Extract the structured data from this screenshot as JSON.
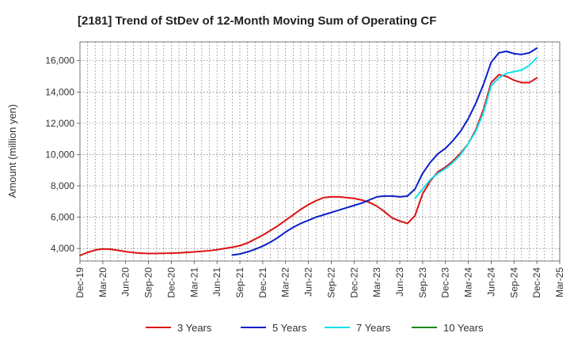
{
  "chart_data": {
    "type": "line",
    "title": "[2181]  Trend of StDev of 12-Month Moving Sum of Operating CF",
    "xlabel": "",
    "ylabel": "Amount (million yen)",
    "ylim": [
      3200,
      17200
    ],
    "yticks": [
      4000,
      6000,
      8000,
      10000,
      12000,
      14000,
      16000
    ],
    "ytick_labels": [
      "4,000",
      "6,000",
      "8,000",
      "10,000",
      "12,000",
      "14,000",
      "16,000"
    ],
    "x_start": "2019-12",
    "x_end": "2025-03",
    "xtick_labels": [
      "Dec-19",
      "Mar-20",
      "Jun-20",
      "Sep-20",
      "Dec-20",
      "Mar-21",
      "Jun-21",
      "Sep-21",
      "Dec-21",
      "Mar-22",
      "Jun-22",
      "Sep-22",
      "Dec-22",
      "Mar-23",
      "Jun-23",
      "Sep-23",
      "Dec-23",
      "Mar-24",
      "Jun-24",
      "Sep-24",
      "Dec-24",
      "Mar-25"
    ],
    "grid": true,
    "legend_position": "bottom",
    "series": [
      {
        "name": "3 Years",
        "color": "#dd1111",
        "x": [
          "2019-12",
          "2020-01",
          "2020-02",
          "2020-03",
          "2020-04",
          "2020-05",
          "2020-06",
          "2020-07",
          "2020-08",
          "2020-09",
          "2020-10",
          "2020-11",
          "2020-12",
          "2021-01",
          "2021-02",
          "2021-03",
          "2021-04",
          "2021-05",
          "2021-06",
          "2021-07",
          "2021-08",
          "2021-09",
          "2021-10",
          "2021-11",
          "2021-12",
          "2022-01",
          "2022-02",
          "2022-03",
          "2022-04",
          "2022-05",
          "2022-06",
          "2022-07",
          "2022-08",
          "2022-09",
          "2022-10",
          "2022-11",
          "2022-12",
          "2023-01",
          "2023-02",
          "2023-03",
          "2023-04",
          "2023-05",
          "2023-06",
          "2023-07",
          "2023-08",
          "2023-09",
          "2023-10",
          "2023-11",
          "2023-12",
          "2024-01",
          "2024-02",
          "2024-03",
          "2024-04",
          "2024-05",
          "2024-06",
          "2024-07",
          "2024-08",
          "2024-09",
          "2024-10",
          "2024-11",
          "2024-12"
        ],
        "values": [
          3550,
          3750,
          3900,
          3970,
          3950,
          3880,
          3800,
          3740,
          3700,
          3680,
          3680,
          3690,
          3700,
          3720,
          3750,
          3780,
          3820,
          3860,
          3920,
          4000,
          4080,
          4180,
          4350,
          4600,
          4850,
          5150,
          5450,
          5800,
          6150,
          6500,
          6800,
          7050,
          7250,
          7300,
          7300,
          7250,
          7200,
          7100,
          6950,
          6700,
          6350,
          5950,
          5750,
          5600,
          6100,
          7500,
          8300,
          8900,
          9200,
          9600,
          10100,
          10700,
          11600,
          12900,
          14600,
          15100,
          15000,
          14750,
          14600,
          14600,
          14900
        ]
      },
      {
        "name": "5 Years",
        "color": "#0a1fc8",
        "x": [
          "2021-08",
          "2021-09",
          "2021-10",
          "2021-11",
          "2021-12",
          "2022-01",
          "2022-02",
          "2022-03",
          "2022-04",
          "2022-05",
          "2022-06",
          "2022-07",
          "2022-08",
          "2022-09",
          "2022-10",
          "2022-11",
          "2022-12",
          "2023-01",
          "2023-02",
          "2023-03",
          "2023-04",
          "2023-05",
          "2023-06",
          "2023-07",
          "2023-08",
          "2023-09",
          "2023-10",
          "2023-11",
          "2023-12",
          "2024-01",
          "2024-02",
          "2024-03",
          "2024-04",
          "2024-05",
          "2024-06",
          "2024-07",
          "2024-08",
          "2024-09",
          "2024-10",
          "2024-11",
          "2024-12"
        ],
        "values": [
          3580,
          3650,
          3780,
          3950,
          4150,
          4400,
          4700,
          5050,
          5350,
          5600,
          5800,
          6000,
          6150,
          6300,
          6450,
          6600,
          6750,
          6900,
          7100,
          7300,
          7350,
          7350,
          7300,
          7350,
          7800,
          8800,
          9500,
          10050,
          10400,
          10900,
          11500,
          12300,
          13300,
          14500,
          15900,
          16500,
          16600,
          16450,
          16400,
          16500,
          16800
        ]
      },
      {
        "name": "7 Years",
        "color": "#11e0ee",
        "x": [
          "2023-08",
          "2023-09",
          "2023-10",
          "2023-11",
          "2023-12",
          "2024-01",
          "2024-02",
          "2024-03",
          "2024-04",
          "2024-05",
          "2024-06",
          "2024-07",
          "2024-08",
          "2024-09",
          "2024-10",
          "2024-11",
          "2024-12"
        ],
        "values": [
          7200,
          7800,
          8400,
          8800,
          9100,
          9500,
          10000,
          10700,
          11500,
          12700,
          14400,
          14900,
          15200,
          15300,
          15400,
          15700,
          16200
        ]
      },
      {
        "name": "10 Years",
        "color": "#1a8a1a",
        "x": [],
        "values": []
      }
    ]
  }
}
